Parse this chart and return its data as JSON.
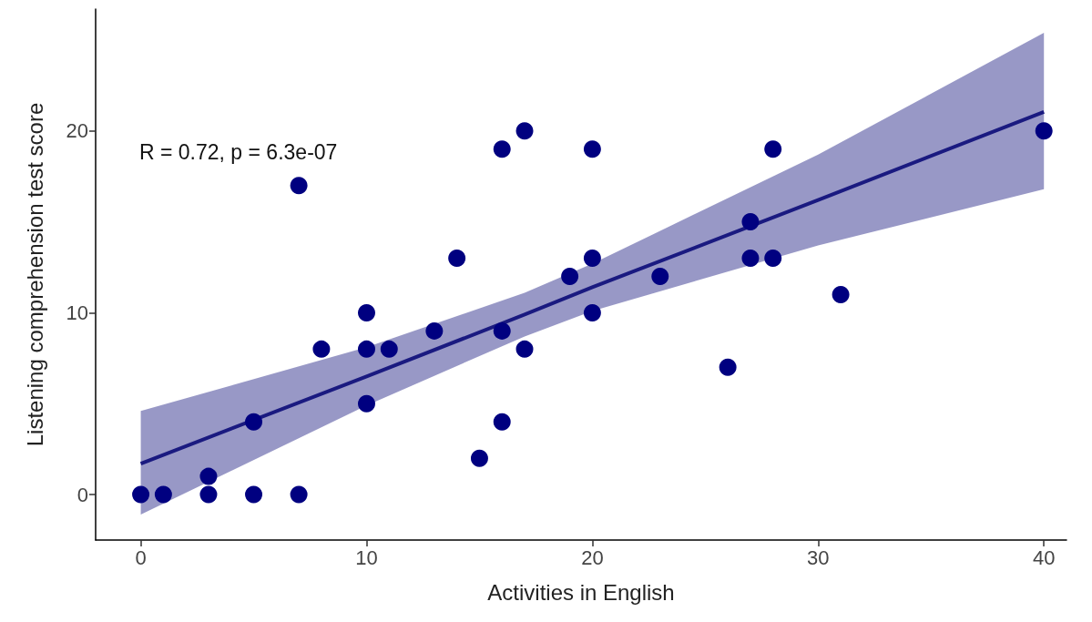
{
  "chart_data": {
    "type": "scatter",
    "xlabel": "Activities in English",
    "ylabel": "Listening comprehension test score",
    "annotations": [
      "R = 0.72, p = 6.3e-07"
    ],
    "xlim": [
      -2,
      41
    ],
    "xticks": [
      0,
      10,
      20,
      30,
      40
    ],
    "ylim": [
      -2.5,
      26.7
    ],
    "yticks": [
      0,
      10,
      20
    ],
    "grid": false,
    "marker": "circle",
    "series": [
      {
        "color": "#000080",
        "x": [
          0,
          1,
          3,
          3,
          5,
          5,
          7,
          7,
          8,
          10,
          10,
          10,
          11,
          13,
          14,
          15,
          16,
          16,
          16,
          17,
          17,
          19,
          20,
          20,
          20,
          23,
          26,
          27,
          27,
          28,
          28,
          31,
          40
        ],
        "values": [
          0,
          0,
          1,
          0,
          4,
          0,
          17,
          0,
          8,
          10,
          8,
          5,
          8,
          9,
          13,
          2,
          19,
          9,
          4,
          20,
          8,
          12,
          19,
          13,
          10,
          12,
          7,
          15,
          13,
          19,
          13,
          11,
          20
        ]
      },
      {
        "type": "line",
        "color": "#1a1a80",
        "x": [
          0,
          10,
          17,
          20,
          30,
          40
        ],
        "values": [
          1.7,
          6.5,
          9.9,
          11.4,
          16.2,
          21.05
        ],
        "lower": [
          -1.1,
          4.9,
          8.7,
          10.1,
          13.7,
          16.8
        ],
        "upper": [
          4.6,
          8.1,
          11.1,
          12.7,
          18.7,
          25.4
        ],
        "marker": "none"
      }
    ]
  }
}
